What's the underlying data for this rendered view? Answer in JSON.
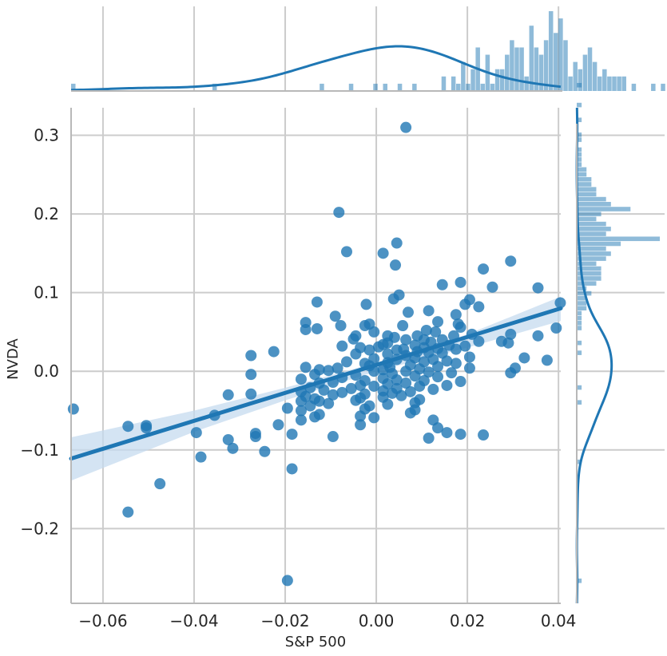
{
  "chart_data": {
    "type": "scatter",
    "subtype": "jointplot with regression line, marginal histograms and KDE",
    "xlabel": "S&P 500",
    "ylabel": "NVDA",
    "xlim": [
      -0.067,
      0.0405
    ],
    "ylim": [
      -0.295,
      0.335
    ],
    "x_ticks": [
      -0.06,
      -0.04,
      -0.02,
      0.0,
      0.02,
      0.04
    ],
    "x_tick_labels": [
      "−0.06",
      "−0.04",
      "−0.02",
      "0.00",
      "0.02",
      "0.04"
    ],
    "y_ticks": [
      -0.2,
      -0.1,
      0.0,
      0.1,
      0.2,
      0.3
    ],
    "y_tick_labels": [
      "−0.2",
      "−0.1",
      "0.0",
      "0.1",
      "0.2",
      "0.3"
    ],
    "grid": true,
    "colors": {
      "points": "#1f77b4",
      "line": "#1f77b4",
      "ci_band": "#c6dbef",
      "grid": "#cccccc",
      "axis": "#b8b8b8"
    },
    "regression": {
      "x": [
        -0.067,
        0.0405
      ],
      "y": [
        -0.111,
        0.08
      ],
      "ci_x": [
        -0.067,
        -0.04,
        -0.02,
        0.0,
        0.02,
        0.0405
      ],
      "ci_low": [
        -0.139,
        -0.077,
        -0.037,
        -0.0,
        0.03,
        0.064
      ],
      "ci_high": [
        -0.084,
        -0.05,
        -0.021,
        0.011,
        0.047,
        0.095
      ]
    },
    "points": [
      {
        "x": 0.0065,
        "y": 0.31
      },
      {
        "x": -0.0082,
        "y": 0.202
      },
      {
        "x": 0.0045,
        "y": 0.163
      },
      {
        "x": -0.0065,
        "y": 0.152
      },
      {
        "x": 0.0015,
        "y": 0.15
      },
      {
        "x": 0.0042,
        "y": 0.135
      },
      {
        "x": 0.0295,
        "y": 0.14
      },
      {
        "x": 0.0235,
        "y": 0.13
      },
      {
        "x": 0.0185,
        "y": 0.113
      },
      {
        "x": 0.0145,
        "y": 0.11
      },
      {
        "x": 0.0255,
        "y": 0.107
      },
      {
        "x": 0.0355,
        "y": 0.106
      },
      {
        "x": 0.005,
        "y": 0.097
      },
      {
        "x": 0.0038,
        "y": 0.092
      },
      {
        "x": 0.0205,
        "y": 0.091
      },
      {
        "x": -0.013,
        "y": 0.088
      },
      {
        "x": 0.0404,
        "y": 0.087
      },
      {
        "x": -0.0022,
        "y": 0.085
      },
      {
        "x": 0.0195,
        "y": 0.085
      },
      {
        "x": 0.0225,
        "y": 0.082
      },
      {
        "x": 0.007,
        "y": 0.075
      },
      {
        "x": 0.0115,
        "y": 0.077
      },
      {
        "x": -0.009,
        "y": 0.07
      },
      {
        "x": 0.0175,
        "y": 0.072
      },
      {
        "x": -0.0155,
        "y": 0.062
      },
      {
        "x": 0.0135,
        "y": 0.063
      },
      {
        "x": -0.0015,
        "y": 0.06
      },
      {
        "x": 0.018,
        "y": 0.06
      },
      {
        "x": -0.013,
        "y": 0.054
      },
      {
        "x": -0.0025,
        "y": 0.058
      },
      {
        "x": 0.0058,
        "y": 0.058
      },
      {
        "x": -0.0078,
        "y": 0.058
      },
      {
        "x": 0.0185,
        "y": 0.056
      },
      {
        "x": 0.0395,
        "y": 0.055
      },
      {
        "x": -0.0155,
        "y": 0.053
      },
      {
        "x": 0.011,
        "y": 0.052
      },
      {
        "x": 0.013,
        "y": 0.05
      },
      {
        "x": -0.0005,
        "y": 0.05
      },
      {
        "x": 0.021,
        "y": 0.047
      },
      {
        "x": 0.0295,
        "y": 0.047
      },
      {
        "x": 0.0025,
        "y": 0.045
      },
      {
        "x": -0.0045,
        "y": 0.045
      },
      {
        "x": 0.017,
        "y": 0.045
      },
      {
        "x": 0.0355,
        "y": 0.045
      },
      {
        "x": 0.009,
        "y": 0.045
      },
      {
        "x": 0.004,
        "y": 0.043
      },
      {
        "x": -0.005,
        "y": 0.041
      },
      {
        "x": 0.0105,
        "y": 0.04
      },
      {
        "x": 0.0065,
        "y": 0.04
      },
      {
        "x": 0.0145,
        "y": 0.04
      },
      {
        "x": 0.029,
        "y": 0.036
      },
      {
        "x": 0.0275,
        "y": 0.038
      },
      {
        "x": 0.0225,
        "y": 0.038
      },
      {
        "x": 0.012,
        "y": 0.037
      },
      {
        "x": 0.0025,
        "y": 0.036
      },
      {
        "x": 0.0015,
        "y": 0.034
      },
      {
        "x": -0.0075,
        "y": 0.032
      },
      {
        "x": 0.0085,
        "y": 0.033
      },
      {
        "x": 0.016,
        "y": 0.033
      },
      {
        "x": 0.0195,
        "y": 0.032
      },
      {
        "x": 0.0005,
        "y": 0.031
      },
      {
        "x": -0.0035,
        "y": 0.03
      },
      {
        "x": 0.0105,
        "y": 0.03
      },
      {
        "x": 0.0135,
        "y": 0.029
      },
      {
        "x": 0.006,
        "y": 0.028
      },
      {
        "x": 0.0045,
        "y": 0.027
      },
      {
        "x": -0.0015,
        "y": 0.027
      },
      {
        "x": 0.0175,
        "y": 0.028
      },
      {
        "x": -0.0225,
        "y": 0.025
      },
      {
        "x": 0.009,
        "y": 0.025
      },
      {
        "x": 0.0115,
        "y": 0.024
      },
      {
        "x": 0.0145,
        "y": 0.023
      },
      {
        "x": 0.0025,
        "y": 0.022
      },
      {
        "x": -0.0045,
        "y": 0.022
      },
      {
        "x": 0.0065,
        "y": 0.02
      },
      {
        "x": -0.0275,
        "y": 0.02
      },
      {
        "x": 0.0205,
        "y": 0.018
      },
      {
        "x": 0.0325,
        "y": 0.017
      },
      {
        "x": 0.0085,
        "y": 0.017
      },
      {
        "x": -0.0005,
        "y": 0.016
      },
      {
        "x": 0.0125,
        "y": 0.015
      },
      {
        "x": 0.0045,
        "y": 0.015
      },
      {
        "x": 0.0375,
        "y": 0.014
      },
      {
        "x": 0.0155,
        "y": 0.013
      },
      {
        "x": -0.0065,
        "y": 0.012
      },
      {
        "x": 0.0105,
        "y": 0.012
      },
      {
        "x": 0.0025,
        "y": 0.011
      },
      {
        "x": -0.0025,
        "y": 0.01
      },
      {
        "x": 0.0175,
        "y": 0.01
      },
      {
        "x": 0.0075,
        "y": 0.008
      },
      {
        "x": -0.0015,
        "y": 0.007
      },
      {
        "x": 0.0135,
        "y": 0.006
      },
      {
        "x": 0.003,
        "y": 0.005
      },
      {
        "x": 0.0205,
        "y": 0.004
      },
      {
        "x": -0.0155,
        "y": 0.005
      },
      {
        "x": -0.0085,
        "y": 0.004
      },
      {
        "x": -0.0125,
        "y": 0.002
      },
      {
        "x": 0.0095,
        "y": 0.003
      },
      {
        "x": 0.0305,
        "y": 0.004
      },
      {
        "x": 0.0015,
        "y": 0.002
      },
      {
        "x": -0.0105,
        "y": 0.001
      },
      {
        "x": -0.0005,
        "y": 0.0
      },
      {
        "x": 0.0065,
        "y": 0.0
      },
      {
        "x": 0.0115,
        "y": -0.001
      },
      {
        "x": 0.0165,
        "y": -0.002
      },
      {
        "x": 0.0295,
        "y": -0.002
      },
      {
        "x": 0.0035,
        "y": -0.003
      },
      {
        "x": -0.0135,
        "y": -0.004
      },
      {
        "x": -0.0045,
        "y": -0.005
      },
      {
        "x": -0.0275,
        "y": -0.004
      },
      {
        "x": 0.0085,
        "y": -0.006
      },
      {
        "x": 0.0135,
        "y": -0.007
      },
      {
        "x": -0.0075,
        "y": -0.008
      },
      {
        "x": 0.0015,
        "y": -0.009
      },
      {
        "x": -0.0165,
        "y": -0.01
      },
      {
        "x": 0.0045,
        "y": -0.011
      },
      {
        "x": -0.0025,
        "y": -0.012
      },
      {
        "x": 0.0105,
        "y": -0.012
      },
      {
        "x": 0.0185,
        "y": -0.013
      },
      {
        "x": -0.0095,
        "y": -0.014
      },
      {
        "x": -0.0125,
        "y": -0.015
      },
      {
        "x": 0.0065,
        "y": -0.015
      },
      {
        "x": 0.0025,
        "y": -0.016
      },
      {
        "x": -0.0035,
        "y": -0.018
      },
      {
        "x": 0.0155,
        "y": -0.018
      },
      {
        "x": -0.0005,
        "y": -0.019
      },
      {
        "x": 0.0095,
        "y": -0.019
      },
      {
        "x": -0.0145,
        "y": -0.021
      },
      {
        "x": -0.0055,
        "y": -0.022
      },
      {
        "x": 0.0045,
        "y": -0.022
      },
      {
        "x": 0.0125,
        "y": -0.023
      },
      {
        "x": -0.0115,
        "y": -0.024
      },
      {
        "x": 0.0015,
        "y": -0.025
      },
      {
        "x": -0.0165,
        "y": -0.026
      },
      {
        "x": 0.0075,
        "y": -0.026
      },
      {
        "x": -0.0075,
        "y": -0.027
      },
      {
        "x": 0.0035,
        "y": -0.028
      },
      {
        "x": -0.0025,
        "y": -0.029
      },
      {
        "x": -0.0325,
        "y": -0.03
      },
      {
        "x": -0.0275,
        "y": -0.029
      },
      {
        "x": -0.0095,
        "y": -0.03
      },
      {
        "x": 0.0055,
        "y": -0.031
      },
      {
        "x": -0.0155,
        "y": -0.032
      },
      {
        "x": 0.0015,
        "y": -0.033
      },
      {
        "x": -0.0035,
        "y": -0.034
      },
      {
        "x": -0.0135,
        "y": -0.035
      },
      {
        "x": 0.0095,
        "y": -0.036
      },
      {
        "x": -0.0045,
        "y": -0.037
      },
      {
        "x": -0.0125,
        "y": -0.038
      },
      {
        "x": -0.0165,
        "y": -0.038
      },
      {
        "x": 0.0085,
        "y": -0.04
      },
      {
        "x": -0.0105,
        "y": -0.041
      },
      {
        "x": 0.0025,
        "y": -0.042
      },
      {
        "x": -0.0145,
        "y": -0.044
      },
      {
        "x": -0.0015,
        "y": -0.044
      },
      {
        "x": -0.0195,
        "y": -0.047
      },
      {
        "x": -0.0665,
        "y": -0.048
      },
      {
        "x": -0.0025,
        "y": -0.048
      },
      {
        "x": 0.0085,
        "y": -0.049
      },
      {
        "x": -0.0165,
        "y": -0.05
      },
      {
        "x": 0.0075,
        "y": -0.053
      },
      {
        "x": -0.0125,
        "y": -0.055
      },
      {
        "x": -0.0355,
        "y": -0.056
      },
      {
        "x": -0.0035,
        "y": -0.057
      },
      {
        "x": -0.0135,
        "y": -0.058
      },
      {
        "x": -0.0005,
        "y": -0.059
      },
      {
        "x": -0.0165,
        "y": -0.062
      },
      {
        "x": 0.0125,
        "y": -0.062
      },
      {
        "x": -0.0215,
        "y": -0.068
      },
      {
        "x": -0.0035,
        "y": -0.068
      },
      {
        "x": -0.0505,
        "y": -0.069
      },
      {
        "x": -0.0545,
        "y": -0.07
      },
      {
        "x": -0.0505,
        "y": -0.072
      },
      {
        "x": 0.0135,
        "y": -0.072
      },
      {
        "x": -0.0395,
        "y": -0.078
      },
      {
        "x": -0.0265,
        "y": -0.079
      },
      {
        "x": 0.0155,
        "y": -0.078
      },
      {
        "x": -0.0185,
        "y": -0.08
      },
      {
        "x": 0.0235,
        "y": -0.081
      },
      {
        "x": 0.0185,
        "y": -0.08
      },
      {
        "x": -0.0265,
        "y": -0.083
      },
      {
        "x": -0.0095,
        "y": -0.083
      },
      {
        "x": 0.0115,
        "y": -0.085
      },
      {
        "x": -0.0325,
        "y": -0.087
      },
      {
        "x": -0.0315,
        "y": -0.098
      },
      {
        "x": -0.0245,
        "y": -0.102
      },
      {
        "x": -0.0385,
        "y": -0.109
      },
      {
        "x": -0.0185,
        "y": -0.124
      },
      {
        "x": -0.0475,
        "y": -0.143
      },
      {
        "x": -0.0545,
        "y": -0.179
      },
      {
        "x": -0.0195,
        "y": -0.266
      }
    ],
    "x_marginal": {
      "bins_start": -0.067,
      "bin_width": 0.00107,
      "counts": [
        1,
        0,
        0,
        0,
        0,
        0,
        0,
        0,
        0,
        0,
        0,
        0,
        0,
        0,
        0,
        0,
        0,
        0,
        0,
        0,
        0,
        0,
        0,
        0,
        0,
        0,
        0,
        0,
        0,
        1,
        0,
        0,
        0,
        0,
        0,
        0,
        0,
        0,
        0,
        0,
        0,
        0,
        0,
        0,
        0,
        0,
        0,
        0,
        0,
        0,
        0,
        1,
        0,
        0,
        0,
        0,
        0,
        1,
        0,
        0,
        0,
        0,
        1,
        0,
        1,
        0,
        0,
        1,
        0,
        0,
        1,
        0,
        0,
        0,
        0,
        0,
        2,
        0,
        2,
        1,
        4,
        1,
        3,
        6,
        1,
        5,
        1,
        3,
        3,
        5,
        7,
        6,
        6,
        2,
        9,
        6,
        5,
        7,
        11,
        8,
        10,
        7,
        2,
        4,
        3,
        5,
        6,
        4,
        2,
        3,
        2,
        2,
        2,
        2,
        0,
        1,
        0,
        0,
        0,
        1,
        0,
        1
      ]
    },
    "y_marginal": {
      "bins_start": -0.295,
      "bin_width": 0.0063,
      "counts": [
        0,
        0,
        0,
        0,
        1,
        0,
        0,
        0,
        0,
        0,
        0,
        0,
        0,
        0,
        0,
        0,
        0,
        0,
        0,
        0,
        0,
        0,
        0,
        0,
        0,
        0,
        0,
        0,
        1,
        0,
        0,
        0,
        0,
        0,
        0,
        0,
        0,
        0,
        0,
        0,
        1,
        0,
        0,
        1,
        0,
        0,
        0,
        0,
        0,
        0,
        1,
        0,
        1,
        0,
        0,
        1,
        1,
        1,
        1,
        2,
        2,
        2,
        3,
        2,
        4,
        5,
        5,
        5,
        4,
        6,
        7,
        6,
        9,
        17,
        6,
        7,
        6,
        4,
        5,
        11,
        7,
        6,
        4,
        4,
        3,
        3,
        2,
        2,
        1,
        1,
        1,
        1,
        0,
        1,
        1,
        0,
        0,
        1,
        0,
        0,
        1,
        0,
        0,
        0,
        1,
        0,
        0,
        0,
        0,
        0,
        0,
        0,
        0,
        0,
        0,
        0,
        0,
        0,
        0,
        0,
        0,
        0,
        0,
        0,
        0,
        0,
        0,
        0,
        0,
        0,
        0,
        0,
        0,
        0,
        0,
        0,
        0,
        0,
        0,
        0,
        0,
        0,
        0,
        0,
        0,
        0,
        0,
        0,
        0,
        0,
        0,
        1,
        0,
        0,
        0,
        0,
        0,
        0,
        0,
        0,
        0,
        0,
        0,
        0,
        0,
        0,
        1
      ]
    }
  }
}
